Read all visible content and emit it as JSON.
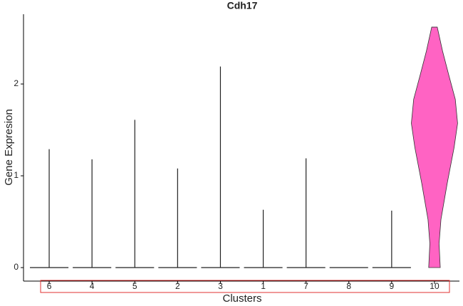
{
  "chart_data": {
    "type": "violin",
    "title": "Cdh17",
    "x_label": "Clusters",
    "y_label": "Gene Expresion",
    "categories": [
      "6",
      "4",
      "5",
      "2",
      "3",
      "1",
      "7",
      "8",
      "9",
      "10"
    ],
    "values": [
      1.29,
      1.18,
      1.61,
      1.08,
      2.19,
      0.63,
      1.19,
      0,
      0.62,
      2.62
    ],
    "colors": [
      "#ffffff",
      "#ffffff",
      "#ffffff",
      "#ffffff",
      "#ffffff",
      "#ffffff",
      "#ffffff",
      "#ffffff",
      "#ffffff",
      "#ff63c3"
    ],
    "ylim": [
      -0.147,
      2.76
    ],
    "yticks": [
      0,
      1,
      2
    ],
    "grid": false
  }
}
